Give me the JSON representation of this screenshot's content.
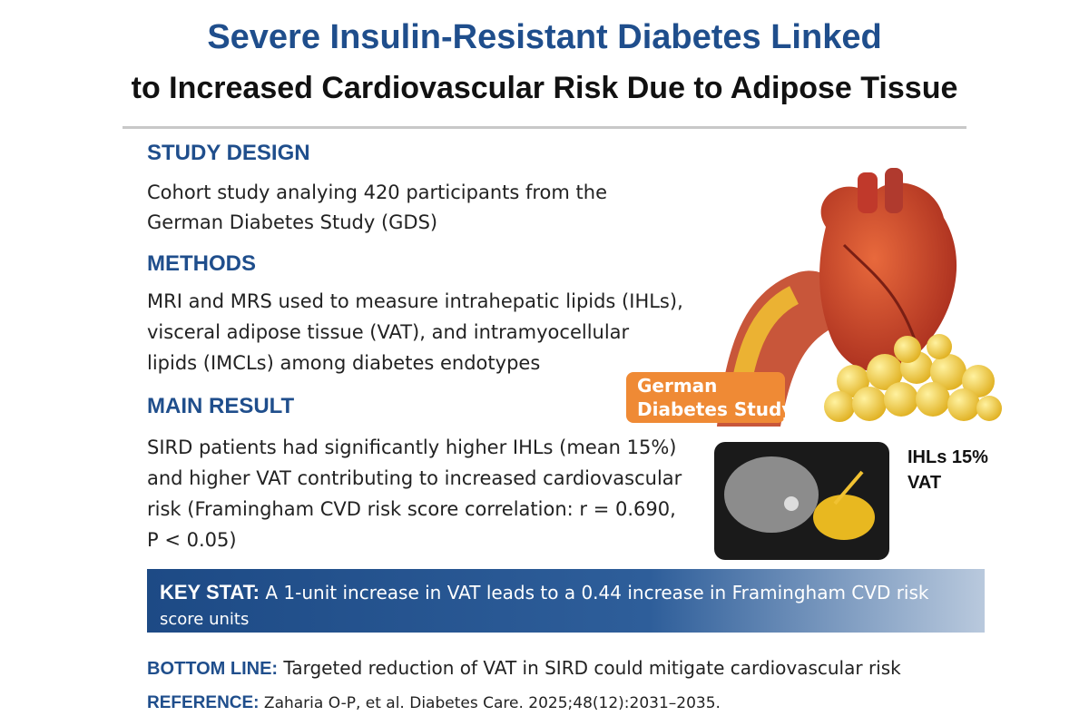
{
  "title": {
    "line1": "Severe Insulin-Resistant Diabetes Linked",
    "line2": "to Increased Cardiovascular Risk Due to Adipose Tissue"
  },
  "sections": [
    {
      "heading": "STUDY DESIGN",
      "lines": [
        "Cohort study analying 420 participants from the",
        "German Diabetes Study (GDS)"
      ]
    },
    {
      "heading": "METHODS",
      "lines": [
        "MRI and MRS used to measure intrahepatic lipids (IHLs),",
        "visceral adipose tissue (VAT), and intramyocellular",
        "lipids (IMCLs) among diabetes endotypes"
      ]
    },
    {
      "heading": "MAIN RESULT",
      "lines": [
        "SIRD patients had significantly higher IHLs (mean 15%)",
        "and higher VAT contributing to increased cardiovascular",
        "risk (Framingham CVD risk score correlation: r = 0.690,",
        "P < 0.05)"
      ]
    }
  ],
  "illustration": {
    "badge": [
      "German",
      "Diabetes Study"
    ]
  },
  "mri": {
    "labels": [
      "IHLs 15%",
      "VAT"
    ]
  },
  "key_stat": {
    "label": "KEY STAT:",
    "lines": [
      "A 1-unit increase in VAT leads to a 0.44 increase in Framingham CVD risk",
      "score units"
    ]
  },
  "bottom_line": {
    "label": "BOTTOM LINE:",
    "text": "Targeted reduction of VAT in SIRD could mitigate cardiovascular risk"
  },
  "reference": {
    "label": "REFERENCE:",
    "text": "Zaharia O-P, et al. Diabetes Care. 2025;48(12):2031–2035."
  }
}
